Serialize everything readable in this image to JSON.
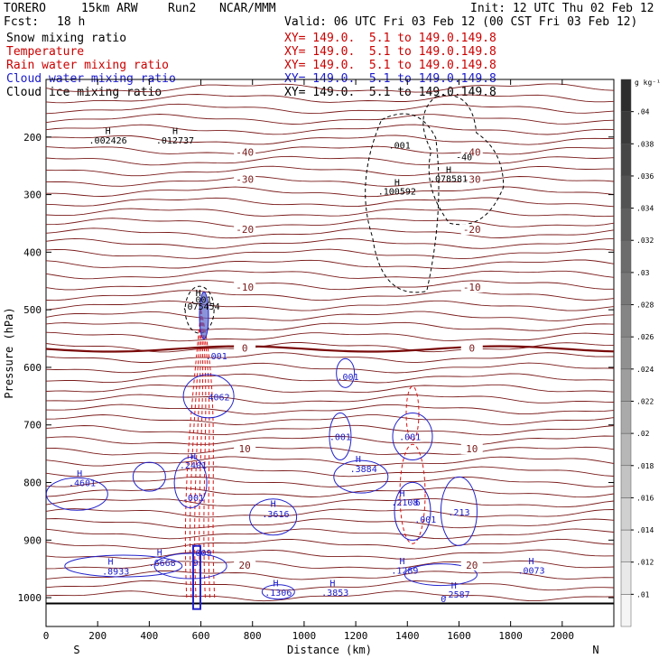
{
  "header": {
    "model": "TORERO",
    "resolution": "15km ARW",
    "run": "Run2",
    "org": "NCAR/MMM",
    "init": "Init: 12 UTC Thu 02 Feb 12",
    "fcst_label": "Fcst:",
    "fcst_value": "18 h",
    "valid": "Valid: 06 UTC Fri 03 Feb 12 (00 CST Fri 03 Feb 12)"
  },
  "fields": [
    {
      "name": "Snow mixing ratio",
      "color": "#000000",
      "xy": ""
    },
    {
      "name": "Temperature",
      "color": "#cc0000",
      "xy": "XY= 149.0.  5.1 to 149.0.149.8"
    },
    {
      "name": "Rain water mixing ratio",
      "color": "#cc0000",
      "xy": "XY= 149.0.  5.1 to 149.0.149.8"
    },
    {
      "name": "Cloud water mixing ratio",
      "color": "#1a1acc",
      "xy": "XY= 149.0.  5.1 to 149.0.149.8"
    },
    {
      "name": "Cloud ice mixing ratio",
      "color": "#000000",
      "xy": "XY= 149.0.  5.1 to 149.0.149.8"
    }
  ],
  "first_xy": "XY= 149.0.  5.1 to 149.0.149.8",
  "chart_data": {
    "type": "contour",
    "xlabel": "Distance (km)",
    "ylabel": "Pressure (hPa)",
    "xlim": [
      0,
      2200
    ],
    "ylim": [
      1050,
      100
    ],
    "x_ticks": [
      0,
      200,
      400,
      600,
      800,
      1000,
      1200,
      1400,
      1600,
      1800,
      2000
    ],
    "y_ticks": [
      200,
      300,
      400,
      500,
      600,
      700,
      800,
      900,
      1000
    ],
    "end_labels": {
      "left": "S",
      "right": "N"
    },
    "colorbar": {
      "unit": "g kg⁻¹",
      "ticks": [
        ".01",
        ".012",
        ".014",
        ".016",
        ".018",
        ".02",
        ".022",
        ".024",
        ".026",
        ".028",
        ".03",
        ".032",
        ".034",
        ".036",
        ".038",
        ".04"
      ]
    },
    "temperature_isotherms": [
      {
        "value": -40,
        "label": "-40",
        "p": 228
      },
      {
        "value": -30,
        "label": "-30",
        "p": 275
      },
      {
        "value": -20,
        "label": "-20",
        "p": 362
      },
      {
        "value": -10,
        "label": "-10",
        "p": 462
      },
      {
        "value": 0,
        "label": "0",
        "p": 568
      },
      {
        "value": 10,
        "label": "10",
        "p": 743
      },
      {
        "value": 20,
        "label": "20",
        "p": 945
      }
    ],
    "annotations": [
      {
        "text": "H",
        "x": 240,
        "p": 195
      },
      {
        "text": ".002426",
        "x": 240,
        "p": 211
      },
      {
        "text": "H",
        "x": 500,
        "p": 195
      },
      {
        "text": ".012737",
        "x": 500,
        "p": 211
      },
      {
        "text": ".001",
        "x": 1370,
        "p": 220
      },
      {
        "text": "H",
        "x": 1360,
        "p": 284
      },
      {
        "text": ".100592",
        "x": 1360,
        "p": 300
      },
      {
        "text": "H",
        "x": 1560,
        "p": 262
      },
      {
        "text": ".078581",
        "x": 1560,
        "p": 278
      },
      {
        "text": "-40",
        "x": 1620,
        "p": 240
      },
      {
        "text": "H",
        "x": 590,
        "p": 476
      },
      {
        "text": ".001",
        "x": 600,
        "p": 488
      },
      {
        "text": ".075454",
        "x": 600,
        "p": 500
      },
      {
        "text": ".001",
        "x": 660,
        "p": 586
      },
      {
        "text": ".001",
        "x": 1170,
        "p": 622
      },
      {
        "text": "4062",
        "x": 670,
        "p": 657
      },
      {
        "text": ".001",
        "x": 1140,
        "p": 726
      },
      {
        "text": ".001",
        "x": 1410,
        "p": 726
      },
      {
        "text": "H",
        "x": 1210,
        "p": 765
      },
      {
        "text": ".3884",
        "x": 1230,
        "p": 782
      },
      {
        "text": "H",
        "x": 570,
        "p": 760
      },
      {
        "text": ".2401",
        "x": 570,
        "p": 776
      },
      {
        "text": ".001",
        "x": 570,
        "p": 832
      },
      {
        "text": "H",
        "x": 130,
        "p": 790
      },
      {
        "text": ".4601",
        "x": 140,
        "p": 806
      },
      {
        "text": "H",
        "x": 880,
        "p": 842
      },
      {
        "text": ".3616",
        "x": 890,
        "p": 860
      },
      {
        "text": "H",
        "x": 1380,
        "p": 824
      },
      {
        "text": ".2108",
        "x": 1390,
        "p": 840
      },
      {
        "text": "6",
        "x": 1440,
        "p": 840
      },
      {
        "text": ".213",
        "x": 1600,
        "p": 857
      },
      {
        "text": ".001",
        "x": 1470,
        "p": 870
      },
      {
        "text": "H",
        "x": 250,
        "p": 943
      },
      {
        "text": ".8933",
        "x": 270,
        "p": 960
      },
      {
        "text": "H",
        "x": 440,
        "p": 927
      },
      {
        "text": ".6668",
        "x": 450,
        "p": 945
      },
      {
        "text": "9",
        "x": 580,
        "p": 945
      },
      {
        "text": ".009",
        "x": 600,
        "p": 928
      },
      {
        "text": "H",
        "x": 890,
        "p": 980
      },
      {
        "text": ".1306",
        "x": 900,
        "p": 997
      },
      {
        "text": "H",
        "x": 1110,
        "p": 980
      },
      {
        "text": ".3853",
        "x": 1120,
        "p": 997
      },
      {
        "text": "H",
        "x": 1380,
        "p": 942
      },
      {
        "text": ".1289",
        "x": 1390,
        "p": 958
      },
      {
        "text": "H",
        "x": 1580,
        "p": 984
      },
      {
        "text": ".2587",
        "x": 1590,
        "p": 1000
      },
      {
        "text": "H",
        "x": 1880,
        "p": 942
      },
      {
        "text": ".0073",
        "x": 1880,
        "p": 958
      },
      {
        "text": "0",
        "x": 1540,
        "p": 1008
      }
    ]
  }
}
